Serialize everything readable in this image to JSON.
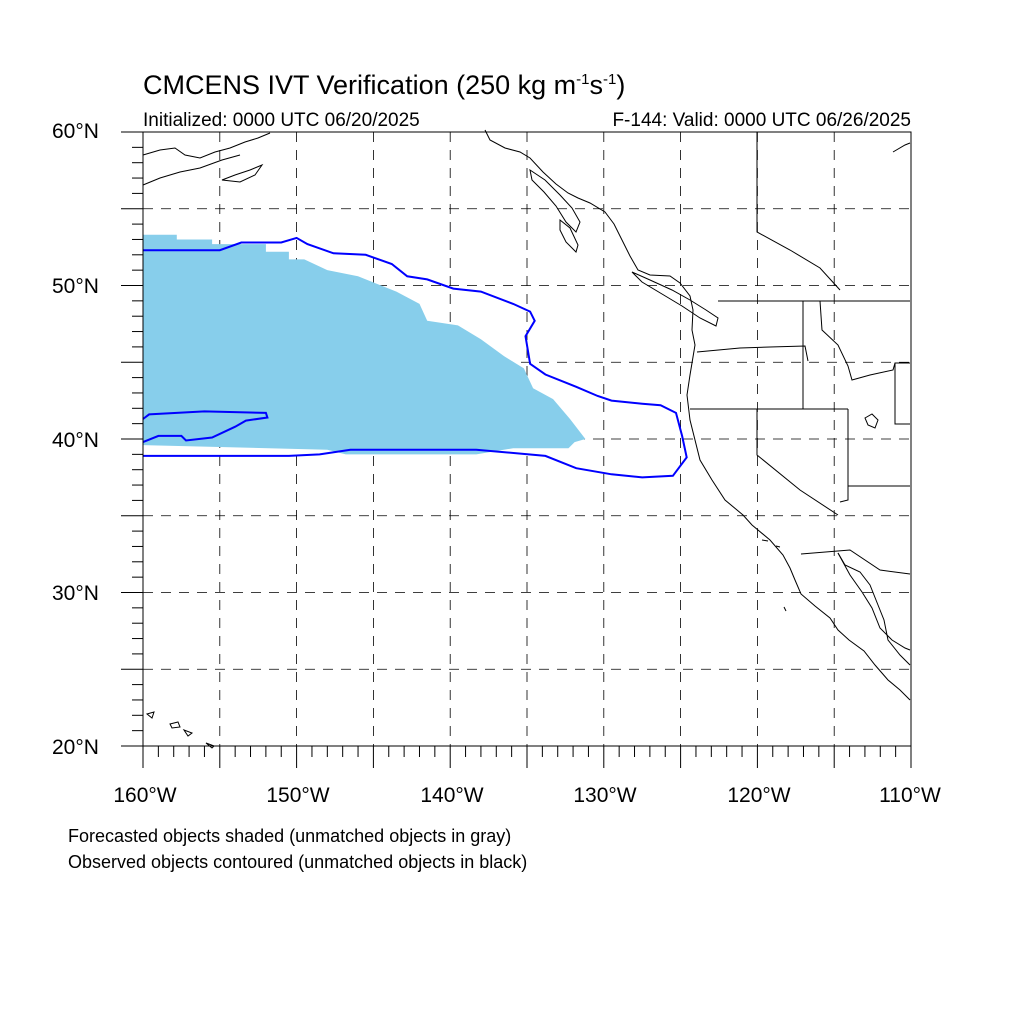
{
  "title": {
    "main": "CMCENS IVT Verification (250 kg m",
    "sup1": "-1",
    "mid": "s",
    "sup2": "-1",
    "end": ")"
  },
  "subtitle_left": "Initialized: 0000 UTC 06/20/2025",
  "subtitle_right": "F-144: Valid: 0000 UTC 06/26/2025",
  "lat_labels": [
    "60°N",
    "50°N",
    "40°N",
    "30°N",
    "20°N"
  ],
  "lon_labels": [
    "160°W",
    "150°W",
    "140°W",
    "130°W",
    "120°W",
    "110°W"
  ],
  "footnotes": [
    "Forecasted objects shaded (unmatched objects in gray)",
    "Observed objects contoured (unmatched objects in black)"
  ],
  "map_extent": {
    "lon_min": -160,
    "lon_max": -110,
    "lat_min": 20,
    "lat_max": 60
  },
  "colors": {
    "forecast_fill": "#87ceeb",
    "observed_contour": "#0000ff",
    "coastline": "#000000",
    "grid": "#000000"
  },
  "forecast_object": {
    "outline_lonlat": [
      [
        -160,
        53.3
      ],
      [
        -157.8,
        53.3
      ],
      [
        -157.8,
        53.0
      ],
      [
        -155.5,
        53.0
      ],
      [
        -155.5,
        52.7
      ],
      [
        -152,
        52.7
      ],
      [
        -152,
        52.2
      ],
      [
        -150.5,
        52.2
      ],
      [
        -150.5,
        51.7
      ],
      [
        -149.5,
        51.7
      ],
      [
        -148,
        51.0
      ],
      [
        -146,
        50.6
      ],
      [
        -143.5,
        49.6
      ],
      [
        -142,
        48.8
      ],
      [
        -141.5,
        47.7
      ],
      [
        -139.5,
        47.4
      ],
      [
        -138,
        46.5
      ],
      [
        -136.5,
        45.4
      ],
      [
        -135.2,
        44.6
      ],
      [
        -134.6,
        43.3
      ],
      [
        -133.3,
        42.6
      ],
      [
        -132.2,
        41.3
      ],
      [
        -131.2,
        40.0
      ],
      [
        -131.9,
        39.8
      ],
      [
        -132.3,
        39.4
      ],
      [
        -135.9,
        39.4
      ],
      [
        -138.3,
        39.0
      ],
      [
        -146.8,
        39.0
      ],
      [
        -148,
        39.3
      ],
      [
        -160,
        39.6
      ],
      [
        -160,
        53.3
      ]
    ]
  },
  "observed_objects": [
    {
      "outline_lonlat": [
        [
          -160,
          52.3
        ],
        [
          -155,
          52.3
        ],
        [
          -153.6,
          52.8
        ],
        [
          -151,
          52.8
        ],
        [
          -150,
          53.1
        ],
        [
          -149.3,
          52.7
        ],
        [
          -147.6,
          52.1
        ],
        [
          -145.5,
          52.0
        ],
        [
          -143.8,
          51.4
        ],
        [
          -142.8,
          50.6
        ],
        [
          -141.5,
          50.4
        ],
        [
          -139.8,
          49.8
        ],
        [
          -138,
          49.6
        ],
        [
          -135.9,
          48.8
        ],
        [
          -134.8,
          48.3
        ],
        [
          -134.5,
          47.7
        ],
        [
          -135.1,
          46.7
        ],
        [
          -134.8,
          44.9
        ],
        [
          -133.8,
          44.2
        ],
        [
          -131.8,
          43.4
        ],
        [
          -130.4,
          42.8
        ],
        [
          -129.5,
          42.5
        ],
        [
          -127.5,
          42.3
        ],
        [
          -126.3,
          42.2
        ],
        [
          -125.3,
          41.7
        ],
        [
          -124.9,
          40.2
        ],
        [
          -124.6,
          38.8
        ],
        [
          -125.5,
          37.6
        ],
        [
          -127.5,
          37.5
        ],
        [
          -129.5,
          37.7
        ],
        [
          -131.8,
          38.1
        ],
        [
          -133.8,
          38.9
        ],
        [
          -138.3,
          39.3
        ],
        [
          -146.5,
          39.3
        ],
        [
          -148.5,
          39.0
        ],
        [
          -150.5,
          38.9
        ],
        [
          -160,
          38.9
        ]
      ]
    },
    {
      "outline_lonlat": [
        [
          -160,
          41.3
        ],
        [
          -159.6,
          41.6
        ],
        [
          -156,
          41.8
        ],
        [
          -152,
          41.7
        ],
        [
          -151.9,
          41.4
        ],
        [
          -153.3,
          41.2
        ],
        [
          -154,
          40.8
        ],
        [
          -155.5,
          40.1
        ],
        [
          -157.2,
          39.9
        ],
        [
          -157.5,
          40.2
        ],
        [
          -159,
          40.2
        ],
        [
          -160,
          39.8
        ]
      ]
    }
  ]
}
